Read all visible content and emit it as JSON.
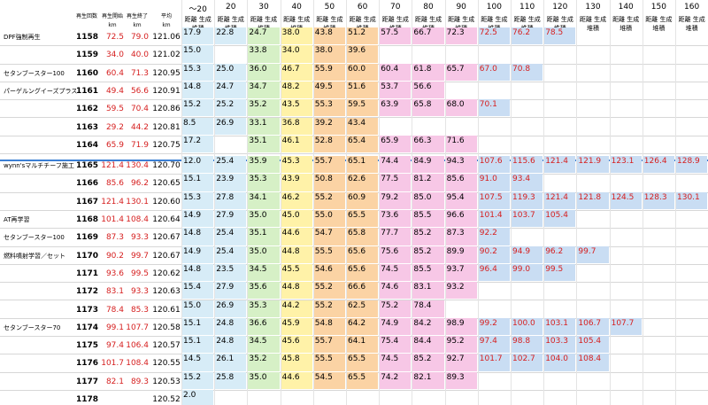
{
  "header": {
    "col_num": "再生回数",
    "col_start": "再生開始",
    "col_end": "再生終了",
    "col_avg": "平均",
    "unit": "km",
    "bands": [
      "～20",
      "20",
      "30",
      "40",
      "50",
      "60",
      "70",
      "80",
      "90",
      "100",
      "110",
      "120",
      "130",
      "140",
      "150",
      "160"
    ],
    "sub_first": [
      "距離",
      "生成",
      "堆積"
    ],
    "sub": [
      "距離",
      "生成",
      "堆積"
    ]
  },
  "colors": {
    "c1": "#d7ecf7",
    "c2": "#d6f0c6",
    "c3": "#fff2a8",
    "c4": "#fbd3a4",
    "c5": "#f7c7e6",
    "c6": "#c9ddf3",
    "red": "#d62020",
    "divider": "#3b7fd4"
  },
  "rows": [
    {
      "label": "DPF強制再生",
      "num": "1158",
      "s": "72.5",
      "e": "79.0",
      "a": "121.06",
      "segs": [
        "17.9",
        "22.8",
        "24.7",
        "38.0",
        "43.8",
        "51.2",
        "57.5",
        "66.7",
        "72.3",
        "72.5",
        "76.2",
        "78.5"
      ]
    },
    {
      "label": "",
      "num": "1159",
      "s": "34.0",
      "e": "40.0",
      "a": "121.02",
      "segs": [
        "15.0",
        "",
        "33.8",
        "34.0",
        "38.0",
        "39.6"
      ]
    },
    {
      "label": "セタンブースター100",
      "num": "1160",
      "s": "60.4",
      "e": "71.3",
      "a": "120.95",
      "segs": [
        "15.3",
        "25.0",
        "36.0",
        "46.7",
        "55.9",
        "60.0",
        "60.4",
        "61.8",
        "65.7",
        "67.0",
        "70.8"
      ]
    },
    {
      "label": "パーゲルングイーズプラス",
      "num": "1161",
      "s": "49.4",
      "e": "56.6",
      "a": "120.91",
      "segs": [
        "14.8",
        "24.7",
        "34.7",
        "48.2",
        "49.5",
        "51.6",
        "53.7",
        "56.6"
      ]
    },
    {
      "label": "",
      "num": "1162",
      "s": "59.5",
      "e": "70.4",
      "a": "120.86",
      "segs": [
        "15.2",
        "25.2",
        "35.2",
        "43.5",
        "55.3",
        "59.5",
        "63.9",
        "65.8",
        "68.0",
        "70.1"
      ]
    },
    {
      "label": "",
      "num": "1163",
      "s": "29.2",
      "e": "44.2",
      "a": "120.81",
      "segs": [
        "8.5",
        "26.9",
        "33.1",
        "36.8",
        "39.2",
        "43.4"
      ]
    },
    {
      "label": "",
      "num": "1164",
      "s": "65.9",
      "e": "71.9",
      "a": "120.75",
      "segs": [
        "17.2",
        "",
        "35.1",
        "46.1",
        "52.8",
        "65.4",
        "65.9",
        "66.3",
        "71.6"
      ]
    },
    {
      "label": "wynn'sマルチチーフ施工",
      "num": "1165",
      "s": "121.4",
      "e": "130.4",
      "a": "120.70",
      "segs": [
        "12.0",
        "25.4",
        "35.9",
        "45.3",
        "55.7",
        "65.1",
        "74.4",
        "84.9",
        "94.3",
        "107.6",
        "115.6",
        "121.4",
        "121.9",
        "123.1",
        "126.4",
        "128.9"
      ]
    },
    {
      "label": "",
      "num": "1166",
      "s": "85.6",
      "e": "96.2",
      "a": "120.65",
      "segs": [
        "15.1",
        "23.9",
        "35.3",
        "43.9",
        "50.8",
        "62.6",
        "77.5",
        "81.2",
        "85.6",
        "91.0",
        "93.4"
      ]
    },
    {
      "label": "",
      "num": "1167",
      "s": "121.4",
      "e": "130.1",
      "a": "120.60",
      "segs": [
        "15.3",
        "27.8",
        "34.1",
        "46.2",
        "55.2",
        "60.9",
        "79.2",
        "85.0",
        "95.4",
        "107.5",
        "119.3",
        "121.4",
        "121.8",
        "124.5",
        "128.3",
        "130.1"
      ]
    },
    {
      "label": "AT再学習",
      "num": "1168",
      "s": "101.4",
      "e": "108.4",
      "a": "120.64",
      "segs": [
        "14.9",
        "27.9",
        "35.0",
        "45.0",
        "55.0",
        "65.5",
        "73.6",
        "85.5",
        "96.6",
        "101.4",
        "103.7",
        "105.4"
      ]
    },
    {
      "label": "セタンブースター100",
      "num": "1169",
      "s": "87.3",
      "e": "93.3",
      "a": "120.67",
      "segs": [
        "14.8",
        "25.4",
        "35.1",
        "44.6",
        "54.7",
        "65.8",
        "77.7",
        "85.2",
        "87.3",
        "92.2"
      ]
    },
    {
      "label": "燃料噴射学習／セット",
      "num": "1170",
      "s": "90.2",
      "e": "99.7",
      "a": "120.67",
      "segs": [
        "14.9",
        "25.4",
        "35.0",
        "44.8",
        "55.5",
        "65.6",
        "75.6",
        "85.2",
        "89.9",
        "90.2",
        "94.9",
        "96.2",
        "99.7"
      ]
    },
    {
      "label": "",
      "num": "1171",
      "s": "93.6",
      "e": "99.5",
      "a": "120.62",
      "segs": [
        "14.8",
        "23.5",
        "34.5",
        "45.5",
        "54.6",
        "65.6",
        "74.5",
        "85.5",
        "93.7",
        "96.4",
        "99.0",
        "99.5"
      ]
    },
    {
      "label": "",
      "num": "1172",
      "s": "83.1",
      "e": "93.3",
      "a": "120.63",
      "segs": [
        "15.4",
        "27.9",
        "35.6",
        "44.8",
        "55.2",
        "66.6",
        "74.6",
        "83.1",
        "93.2"
      ]
    },
    {
      "label": "",
      "num": "1173",
      "s": "78.4",
      "e": "85.3",
      "a": "120.61",
      "segs": [
        "15.0",
        "26.9",
        "35.3",
        "44.2",
        "55.2",
        "62.5",
        "75.2",
        "78.4"
      ]
    },
    {
      "label": "セタンブースター70",
      "num": "1174",
      "s": "99.1",
      "e": "107.7",
      "a": "120.58",
      "segs": [
        "15.1",
        "24.8",
        "36.6",
        "45.9",
        "54.8",
        "64.2",
        "74.9",
        "84.2",
        "98.9",
        "99.2",
        "100.0",
        "103.1",
        "106.7",
        "107.7"
      ]
    },
    {
      "label": "",
      "num": "1175",
      "s": "97.4",
      "e": "106.4",
      "a": "120.57",
      "segs": [
        "15.1",
        "24.8",
        "34.5",
        "45.6",
        "55.7",
        "64.1",
        "75.4",
        "84.4",
        "95.2",
        "97.4",
        "98.8",
        "103.3",
        "105.4"
      ]
    },
    {
      "label": "",
      "num": "1176",
      "s": "101.7",
      "e": "108.4",
      "a": "120.55",
      "segs": [
        "14.5",
        "26.1",
        "35.2",
        "45.8",
        "55.5",
        "65.5",
        "74.5",
        "85.2",
        "92.7",
        "101.7",
        "102.7",
        "104.0",
        "108.4"
      ]
    },
    {
      "label": "",
      "num": "1177",
      "s": "82.1",
      "e": "89.3",
      "a": "120.53",
      "segs": [
        "15.2",
        "25.8",
        "35.0",
        "44.6",
        "54.5",
        "65.5",
        "74.2",
        "82.1",
        "89.3"
      ]
    },
    {
      "label": "",
      "num": "1178",
      "s": "",
      "e": "",
      "a": "120.52",
      "segs": [
        "2.0"
      ]
    }
  ]
}
